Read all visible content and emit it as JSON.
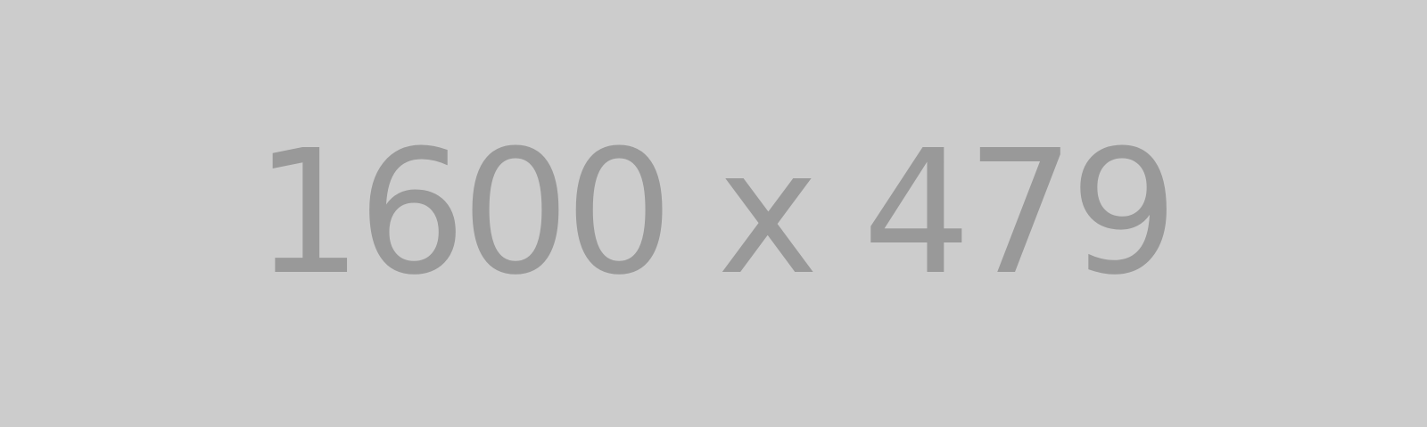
{
  "placeholder": {
    "label": "1600 x 479",
    "background_color": "#cccccc",
    "text_color": "#999999"
  }
}
